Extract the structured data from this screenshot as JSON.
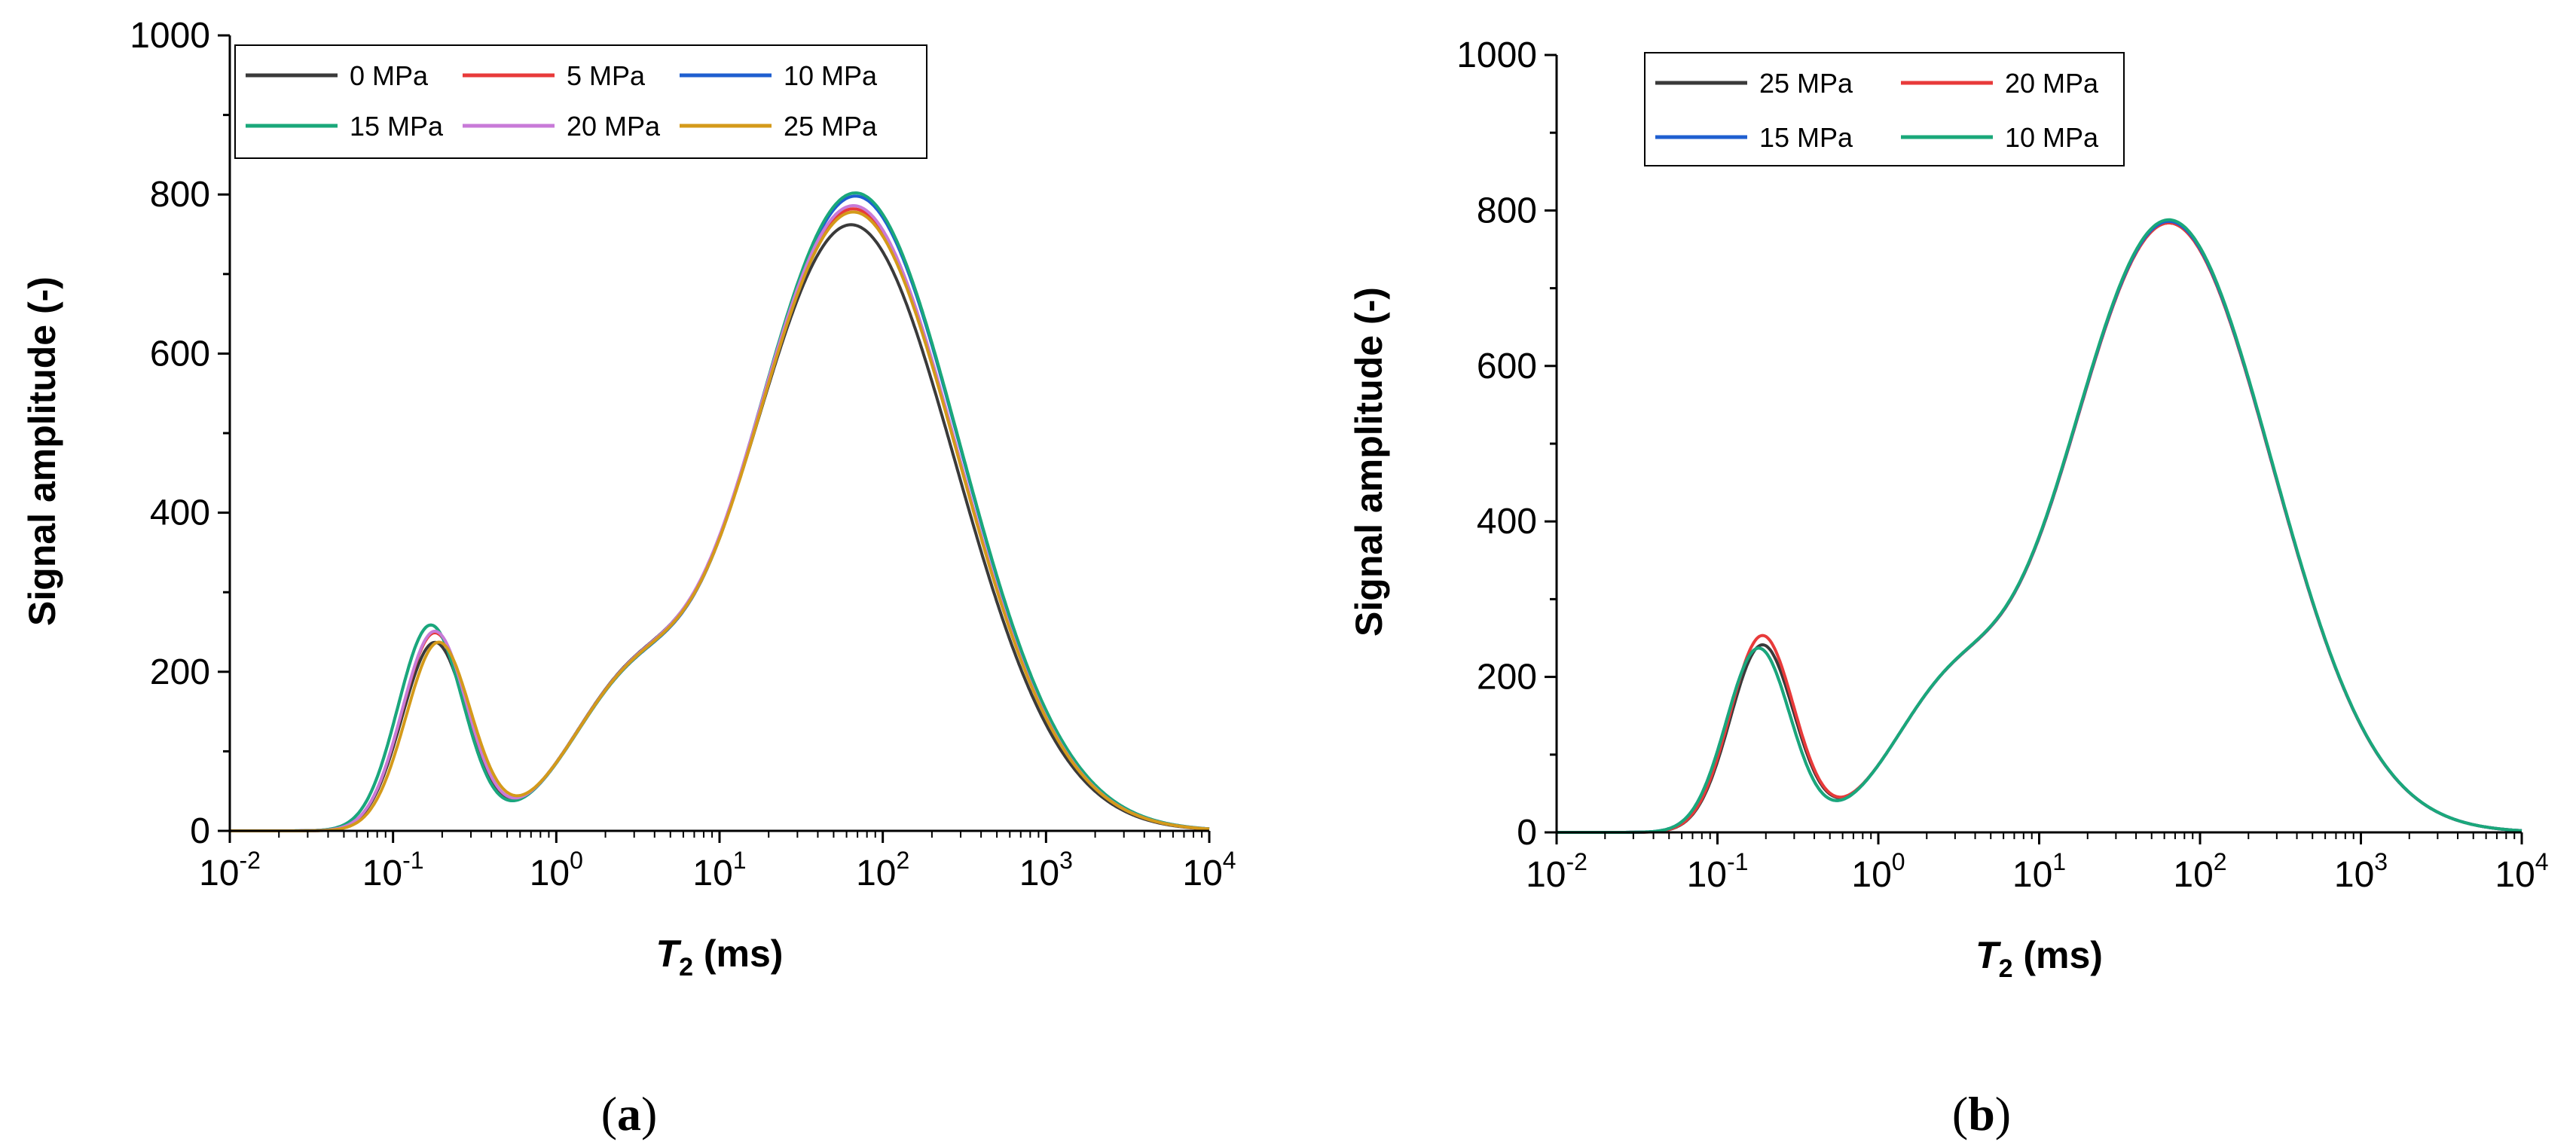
{
  "chart_data": [
    {
      "type": "line",
      "panel_label": "a",
      "caption": [
        "(",
        "a",
        ")"
      ],
      "xlabel": {
        "symbol": "T",
        "subscript": "2",
        "unit": " (ms)"
      },
      "ylabel": "Signal amplitude (-)",
      "xscale": "log",
      "xlim": [
        0.01,
        10000
      ],
      "ylim": [
        0,
        1000
      ],
      "x_ticks": [
        {
          "base": "10",
          "exp": "-2"
        },
        {
          "base": "10",
          "exp": "-1"
        },
        {
          "base": "10",
          "exp": "0"
        },
        {
          "base": "10",
          "exp": "1"
        },
        {
          "base": "10",
          "exp": "2"
        },
        {
          "base": "10",
          "exp": "3"
        },
        {
          "base": "10",
          "exp": "4"
        }
      ],
      "y_ticks": [
        "0",
        "200",
        "400",
        "600",
        "800",
        "1000"
      ],
      "legend_position": "top-left",
      "legend_columns": 3,
      "series": [
        {
          "name": "0 MPa",
          "color": "#3a3a3a",
          "p1": {
            "amp": 236,
            "center": 0.18,
            "sigma": 0.2
          },
          "p2": {
            "amp": 762,
            "center": 64,
            "sigma": 0.64
          },
          "mid": {
            "amp": 140,
            "center": 2.6,
            "sigma": 0.36
          }
        },
        {
          "name": "5 MPa",
          "color": "#e83a3a",
          "p1": {
            "amp": 248,
            "center": 0.18,
            "sigma": 0.2
          },
          "p2": {
            "amp": 782,
            "center": 66,
            "sigma": 0.64
          },
          "mid": {
            "amp": 140,
            "center": 2.6,
            "sigma": 0.36
          }
        },
        {
          "name": "10 MPa",
          "color": "#1f5fd0",
          "p1": {
            "amp": 258,
            "center": 0.17,
            "sigma": 0.2
          },
          "p2": {
            "amp": 798,
            "center": 68,
            "sigma": 0.64
          },
          "mid": {
            "amp": 140,
            "center": 2.6,
            "sigma": 0.36
          }
        },
        {
          "name": "15 MPa",
          "color": "#1aa87a",
          "p1": {
            "amp": 258,
            "center": 0.17,
            "sigma": 0.2
          },
          "p2": {
            "amp": 802,
            "center": 68,
            "sigma": 0.64
          },
          "mid": {
            "amp": 140,
            "center": 2.6,
            "sigma": 0.36
          }
        },
        {
          "name": "20 MPa",
          "color": "#c87ad8",
          "p1": {
            "amp": 250,
            "center": 0.18,
            "sigma": 0.2
          },
          "p2": {
            "amp": 786,
            "center": 66,
            "sigma": 0.64
          },
          "mid": {
            "amp": 140,
            "center": 2.6,
            "sigma": 0.36
          }
        },
        {
          "name": "25 MPa",
          "color": "#d49a1a",
          "p1": {
            "amp": 236,
            "center": 0.19,
            "sigma": 0.2
          },
          "p2": {
            "amp": 778,
            "center": 66,
            "sigma": 0.64
          },
          "mid": {
            "amp": 140,
            "center": 2.6,
            "sigma": 0.36
          }
        }
      ]
    },
    {
      "type": "line",
      "panel_label": "b",
      "caption": [
        "(",
        "b",
        ")"
      ],
      "xlabel": {
        "symbol": "T",
        "subscript": "2",
        "unit": " (ms)"
      },
      "ylabel": "Signal amplitude (-)",
      "xscale": "log",
      "xlim": [
        0.01,
        10000
      ],
      "ylim": [
        0,
        1000
      ],
      "x_ticks": [
        {
          "base": "10",
          "exp": "-2"
        },
        {
          "base": "10",
          "exp": "-1"
        },
        {
          "base": "10",
          "exp": "0"
        },
        {
          "base": "10",
          "exp": "1"
        },
        {
          "base": "10",
          "exp": "2"
        },
        {
          "base": "10",
          "exp": "3"
        },
        {
          "base": "10",
          "exp": "4"
        }
      ],
      "y_ticks": [
        "0",
        "200",
        "400",
        "600",
        "800",
        "1000"
      ],
      "legend_position": "top-left",
      "legend_columns": 2,
      "series": [
        {
          "name": "25 MPa",
          "color": "#3a3a3a",
          "p1": {
            "amp": 240,
            "center": 0.19,
            "sigma": 0.2
          },
          "p2": {
            "amp": 784,
            "center": 64,
            "sigma": 0.64
          },
          "mid": {
            "amp": 140,
            "center": 2.6,
            "sigma": 0.36
          }
        },
        {
          "name": "20 MPa",
          "color": "#e83a3a",
          "p1": {
            "amp": 252,
            "center": 0.19,
            "sigma": 0.2
          },
          "p2": {
            "amp": 784,
            "center": 64,
            "sigma": 0.64
          },
          "mid": {
            "amp": 140,
            "center": 2.6,
            "sigma": 0.36
          }
        },
        {
          "name": "15 MPa",
          "color": "#1f5fd0",
          "p1": {
            "amp": 236,
            "center": 0.18,
            "sigma": 0.2
          },
          "p2": {
            "amp": 786,
            "center": 64,
            "sigma": 0.64
          },
          "mid": {
            "amp": 140,
            "center": 2.6,
            "sigma": 0.36
          }
        },
        {
          "name": "10 MPa",
          "color": "#1aa87a",
          "p1": {
            "amp": 236,
            "center": 0.18,
            "sigma": 0.2
          },
          "p2": {
            "amp": 788,
            "center": 64,
            "sigma": 0.64
          },
          "mid": {
            "amp": 140,
            "center": 2.6,
            "sigma": 0.36
          }
        }
      ]
    }
  ]
}
